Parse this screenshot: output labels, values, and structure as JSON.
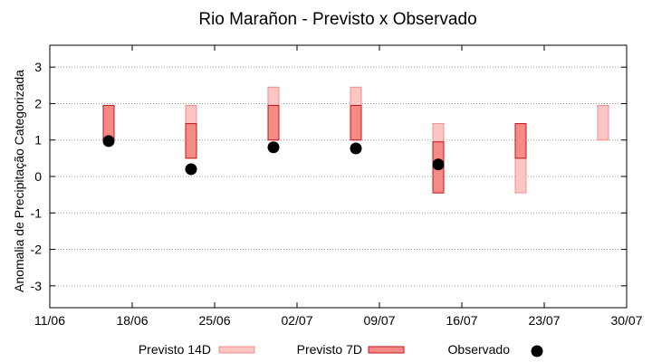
{
  "chart_data": {
    "type": "floating-bar",
    "title": "Rio Marañon - Previsto x Observado",
    "xlabel": "",
    "ylabel": "Anomalia de Precipitação Categorizada",
    "x_ticks": [
      "11/06",
      "18/06",
      "25/06",
      "02/07",
      "09/07",
      "16/07",
      "23/07",
      "30/07"
    ],
    "y_ticks": [
      "3",
      "2",
      "1",
      "0",
      "-1",
      "-2",
      "-3"
    ],
    "x_range_days": [
      0,
      49
    ],
    "ylim": [
      -3.6,
      3.6
    ],
    "grid": "horizontal-dotted",
    "legend_position": "bottom",
    "series": [
      {
        "name": "Previsto 14D",
        "color": "#fbc6c3",
        "stroke": "#f28f8b",
        "bars": [
          {
            "x_day": 12,
            "low": 0.5,
            "high": 1.95
          },
          {
            "x_day": 19,
            "low": 1.0,
            "high": 2.45
          },
          {
            "x_day": 26,
            "low": 1.0,
            "high": 2.45
          },
          {
            "x_day": 33,
            "low": -0.45,
            "high": 1.45
          },
          {
            "x_day": 40,
            "low": -0.45,
            "high": 1.45
          },
          {
            "x_day": 47,
            "low": 1.0,
            "high": 1.95
          }
        ]
      },
      {
        "name": "Previsto 7D",
        "color": "#f68a85",
        "stroke": "#c0141b",
        "bars": [
          {
            "x_day": 5,
            "low": 1.0,
            "high": 1.95
          },
          {
            "x_day": 12,
            "low": 0.5,
            "high": 1.45
          },
          {
            "x_day": 19,
            "low": 1.0,
            "high": 1.95
          },
          {
            "x_day": 26,
            "low": 1.0,
            "high": 1.95
          },
          {
            "x_day": 33,
            "low": -0.45,
            "high": 0.95
          },
          {
            "x_day": 40,
            "low": 0.5,
            "high": 1.45
          }
        ]
      },
      {
        "name": "Observado",
        "color": "#000000",
        "points": [
          {
            "x_day": 5,
            "y": 0.97
          },
          {
            "x_day": 12,
            "y": 0.2
          },
          {
            "x_day": 19,
            "y": 0.8
          },
          {
            "x_day": 26,
            "y": 0.77
          },
          {
            "x_day": 33,
            "y": 0.33
          }
        ]
      }
    ]
  }
}
